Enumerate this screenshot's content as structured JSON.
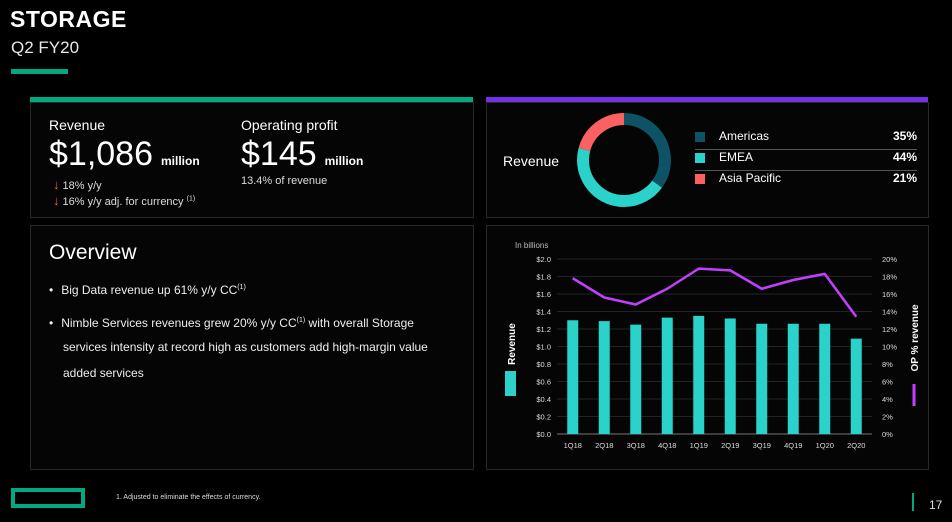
{
  "header": {
    "title": "STORAGE",
    "subtitle": "Q2 FY20"
  },
  "kpi": {
    "revenue": {
      "label": "Revenue",
      "value": "$1,086",
      "unit": "million",
      "change1": "18% y/y",
      "change2": "16% y/y adj. for currency",
      "change2_note": "(1)"
    },
    "op_profit": {
      "label": "Operating profit",
      "value": "$145",
      "unit": "million",
      "margin": "13.4% of revenue"
    }
  },
  "donut": {
    "label": "Revenue",
    "segments": [
      {
        "name": "Americas",
        "value": "35%",
        "pct": 35,
        "color": "#0d5265"
      },
      {
        "name": "EMEA",
        "value": "44%",
        "pct": 44,
        "color": "#2ad2c9"
      },
      {
        "name": "Asia Pacific",
        "value": "21%",
        "pct": 21,
        "color": "#fc6161"
      }
    ]
  },
  "overview": {
    "title": "Overview",
    "bullet1": "Big Data revenue up 61% y/y CC",
    "bullet1_note": "(1)",
    "bullet2_a": "Nimble Services revenues grew 20% y/y CC",
    "bullet2_note": "(1)",
    "bullet2_b": "with overall Storage",
    "bullet2_c": "services intensity at record high as customers add high-margin value",
    "bullet2_d": "added services"
  },
  "chart_data": {
    "type": "bar",
    "title": "In billions",
    "categories": [
      "1Q18",
      "2Q18",
      "3Q18",
      "4Q18",
      "1Q19",
      "2Q19",
      "3Q19",
      "4Q19",
      "1Q20",
      "2Q20"
    ],
    "series": [
      {
        "name": "Revenue",
        "axis": "left",
        "values": [
          1.3,
          1.29,
          1.25,
          1.33,
          1.35,
          1.32,
          1.26,
          1.26,
          1.26,
          1.09
        ],
        "color": "#2ad2c9"
      },
      {
        "name": "OP % revenue",
        "axis": "right",
        "type": "line",
        "values": [
          17.8,
          15.6,
          14.8,
          16.6,
          18.9,
          18.7,
          16.6,
          17.6,
          18.3,
          13.4
        ],
        "color": "#c140ff"
      }
    ],
    "ylabel": "Revenue",
    "y2label": "OP % revenue",
    "ylim": [
      0,
      2.0
    ],
    "y2lim": [
      0,
      20
    ],
    "yticks": [
      "$0.0",
      "$0.2",
      "$0.4",
      "$0.6",
      "$0.8",
      "$1.0",
      "$1.2",
      "$1.4",
      "$1.6",
      "$1.8",
      "$2.0"
    ],
    "y2ticks": [
      "0%",
      "2%",
      "4%",
      "6%",
      "8%",
      "10%",
      "12%",
      "14%",
      "16%",
      "18%",
      "20%"
    ]
  },
  "footer": {
    "footnote": "1.  Adjusted to eliminate the effects of currency.",
    "page_number": "17"
  }
}
